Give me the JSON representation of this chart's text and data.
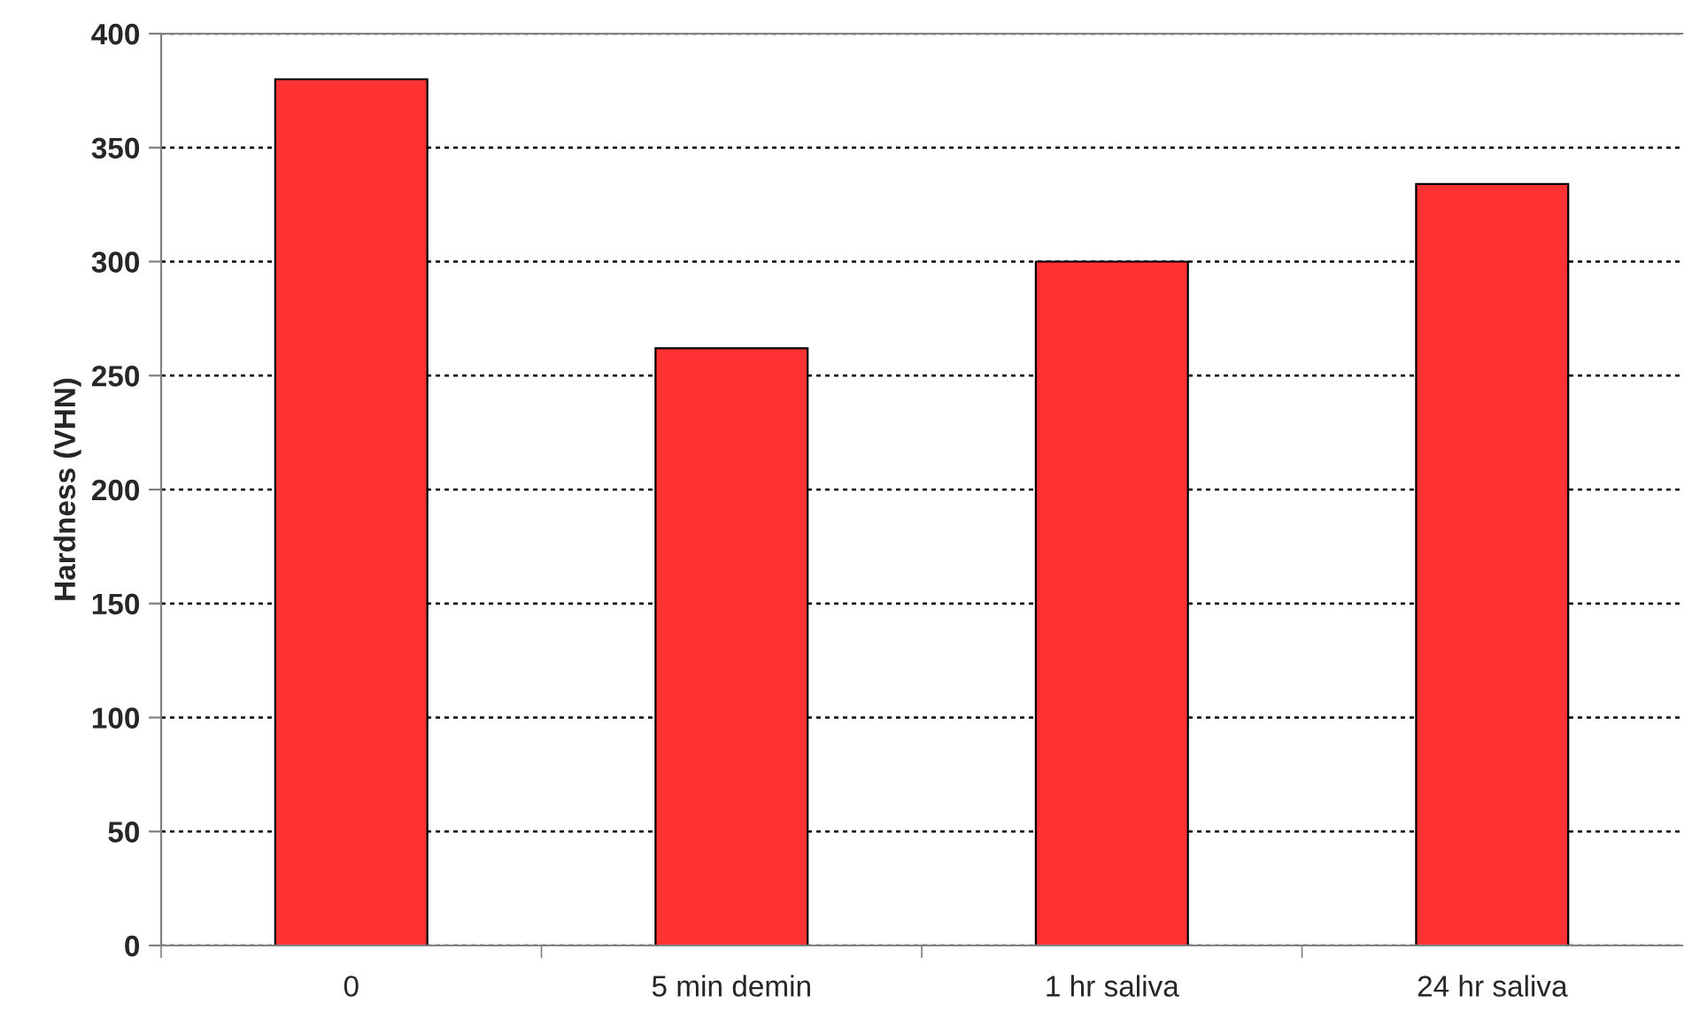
{
  "chart_data": {
    "type": "bar",
    "ylabel": "Hardness (VHN)",
    "categories": [
      "0",
      "5 min demin",
      "1 hr saliva",
      "24 hr saliva"
    ],
    "values": [
      380,
      262,
      300,
      334
    ],
    "color": "#ff3333",
    "ylim": [
      0,
      400
    ],
    "yticks": [
      0,
      50,
      100,
      150,
      200,
      250,
      300,
      350,
      400
    ],
    "grid": "y",
    "line_style": "dotted"
  }
}
